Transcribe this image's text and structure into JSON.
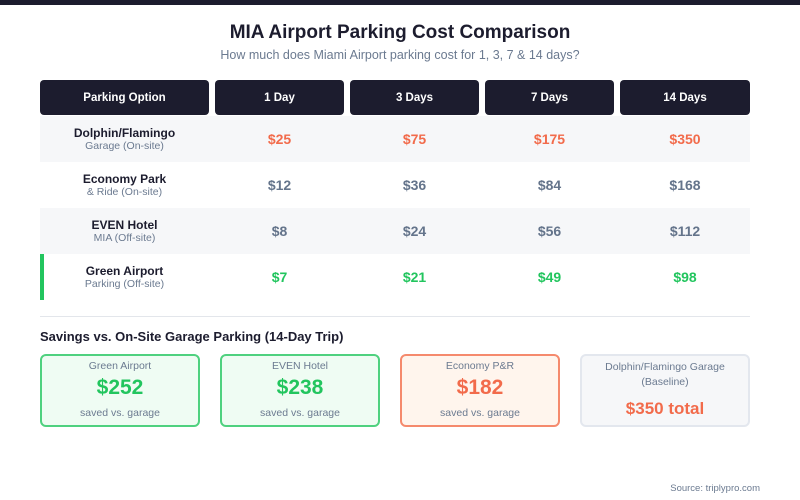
{
  "title": "MIA Airport Parking Cost Comparison",
  "subtitle": "How much does Miami Airport parking cost for 1, 3, 7 & 14 days?",
  "colors": {
    "header": "#1c1c2e",
    "expensive": "#f26b4b",
    "neutral": "#64748b",
    "cheap": "#22c55e"
  },
  "table": {
    "headers": [
      "Parking Option",
      "1 Day",
      "3 Days",
      "7 Days",
      "14 Days"
    ],
    "rows": [
      {
        "name": "Dolphin/Flamingo",
        "sub": "Garage (On-site)",
        "prices": [
          "$25",
          "$75",
          "$175",
          "$350"
        ],
        "tone": "expensive"
      },
      {
        "name": "Economy Park",
        "sub": "& Ride (On-site)",
        "prices": [
          "$12",
          "$36",
          "$84",
          "$168"
        ],
        "tone": "neutral"
      },
      {
        "name": "EVEN Hotel",
        "sub": "MIA (Off-site)",
        "prices": [
          "$8",
          "$24",
          "$56",
          "$112"
        ],
        "tone": "neutral"
      },
      {
        "name": "Green Airport",
        "sub": "Parking (Off-site)",
        "prices": [
          "$7",
          "$21",
          "$49",
          "$98"
        ],
        "tone": "cheap",
        "highlighted": true
      }
    ]
  },
  "savings": {
    "heading": "Savings vs. On-Site Garage Parking (14-Day Trip)",
    "cards": [
      {
        "label": "Green Airport",
        "value": "$252",
        "note": "saved vs. garage"
      },
      {
        "label": "EVEN Hotel",
        "value": "$238",
        "note": "saved vs. garage"
      },
      {
        "label": "Economy P&R",
        "value": "$182",
        "note": "saved vs. garage"
      },
      {
        "label": "Dolphin/Flamingo Garage (Baseline)",
        "value": "$350 total"
      }
    ]
  },
  "source": "Source: triplypro.com"
}
